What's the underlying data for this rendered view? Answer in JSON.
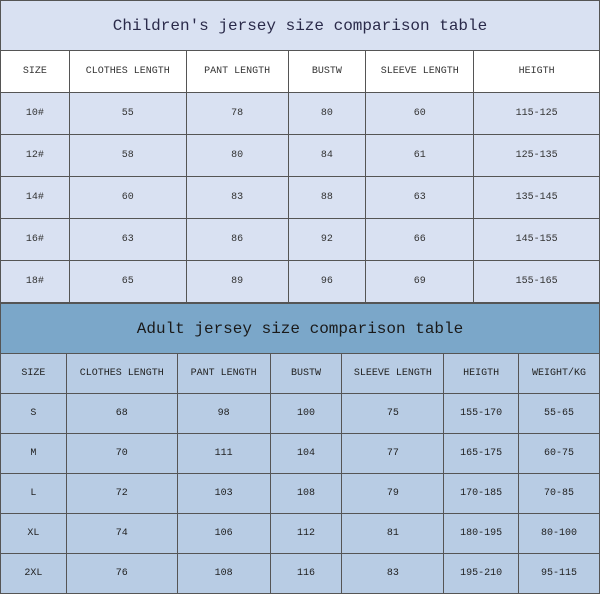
{
  "children": {
    "title": "Children's jersey size comparison table",
    "columns": [
      "SIZE",
      "CLOTHES LENGTH",
      "PANT LENGTH",
      "BUSTW",
      "SLEEVE LENGTH",
      "HEIGTH"
    ],
    "col_widths": [
      "11.5%",
      "19.5%",
      "17%",
      "13%",
      "18%",
      "21%"
    ],
    "rows": [
      [
        "10#",
        "55",
        "78",
        "80",
        "60",
        "115-125"
      ],
      [
        "12#",
        "58",
        "80",
        "84",
        "61",
        "125-135"
      ],
      [
        "14#",
        "60",
        "83",
        "88",
        "63",
        "135-145"
      ],
      [
        "16#",
        "63",
        "86",
        "92",
        "66",
        "145-155"
      ],
      [
        "18#",
        "65",
        "89",
        "96",
        "69",
        "155-165"
      ]
    ],
    "title_bg": "#d9e1f2",
    "header_bg": "#ffffff",
    "data_bg": "#d9e1f2",
    "border_color": "#555555",
    "title_fontsize": 16,
    "cell_fontsize": 10
  },
  "adult": {
    "title": "Adult jersey size comparison table",
    "columns": [
      "SIZE",
      "CLOTHES LENGTH",
      "PANT LENGTH",
      "BUSTW",
      "SLEEVE LENGTH",
      "HEIGTH",
      "WEIGHT/KG"
    ],
    "col_widths": [
      "11%",
      "18.5%",
      "15.5%",
      "12%",
      "17%",
      "12.5%",
      "13.5%"
    ],
    "rows": [
      [
        "S",
        "68",
        "98",
        "100",
        "75",
        "155-170",
        "55-65"
      ],
      [
        "M",
        "70",
        "111",
        "104",
        "77",
        "165-175",
        "60-75"
      ],
      [
        "L",
        "72",
        "103",
        "108",
        "79",
        "170-185",
        "70-85"
      ],
      [
        "XL",
        "74",
        "106",
        "112",
        "81",
        "180-195",
        "80-100"
      ],
      [
        "2XL",
        "76",
        "108",
        "116",
        "83",
        "195-210",
        "95-115"
      ]
    ],
    "title_bg": "#7ba7c9",
    "header_bg": "#b8cce4",
    "data_bg": "#b8cce4",
    "border_color": "#555555",
    "title_fontsize": 16,
    "cell_fontsize": 10
  }
}
